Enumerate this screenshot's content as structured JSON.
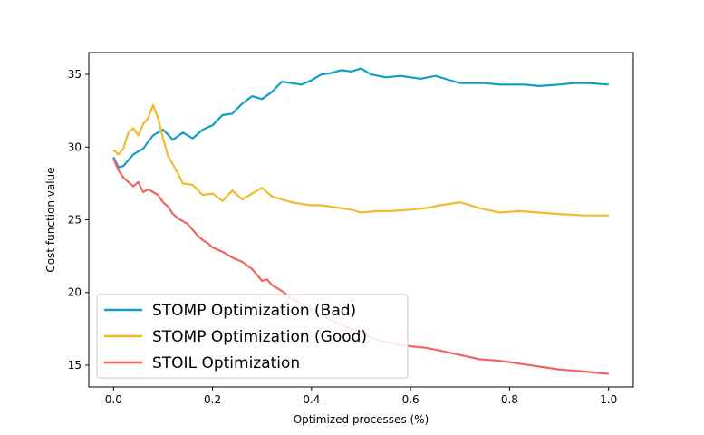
{
  "chart_data": {
    "type": "line",
    "title": "",
    "xlabel": "Optimized processes (%)",
    "ylabel": "Cost function value",
    "xlim": [
      -0.05,
      1.05
    ],
    "ylim": [
      13.5,
      36.5
    ],
    "xticks": [
      0.0,
      0.2,
      0.4,
      0.6,
      0.8,
      1.0
    ],
    "xtick_labels": [
      "0.0",
      "0.2",
      "0.4",
      "0.6",
      "0.8",
      "1.0"
    ],
    "yticks": [
      15,
      20,
      25,
      30,
      35
    ],
    "ytick_labels": [
      "15",
      "20",
      "25",
      "30",
      "35"
    ],
    "grid": false,
    "legend_position": "lower-left",
    "series": [
      {
        "name": "STOMP Optimization (Bad)",
        "color": "#0f9fc6",
        "x": [
          0.0,
          0.01,
          0.02,
          0.04,
          0.06,
          0.08,
          0.1,
          0.12,
          0.14,
          0.16,
          0.18,
          0.2,
          0.22,
          0.24,
          0.26,
          0.28,
          0.3,
          0.32,
          0.34,
          0.36,
          0.38,
          0.4,
          0.42,
          0.44,
          0.46,
          0.48,
          0.5,
          0.52,
          0.55,
          0.58,
          0.6,
          0.62,
          0.65,
          0.68,
          0.7,
          0.72,
          0.75,
          0.78,
          0.8,
          0.83,
          0.86,
          0.9,
          0.93,
          0.96,
          1.0
        ],
        "y": [
          29.3,
          28.6,
          28.7,
          29.5,
          29.9,
          30.8,
          31.2,
          30.5,
          31.0,
          30.6,
          31.2,
          31.5,
          32.2,
          32.3,
          33.0,
          33.5,
          33.3,
          33.8,
          34.5,
          34.4,
          34.3,
          34.6,
          35.0,
          35.1,
          35.3,
          35.2,
          35.4,
          35.0,
          34.8,
          34.9,
          34.8,
          34.7,
          34.9,
          34.6,
          34.4,
          34.4,
          34.4,
          34.3,
          34.3,
          34.3,
          34.2,
          34.3,
          34.4,
          34.4,
          34.3
        ]
      },
      {
        "name": "STOMP Optimization (Good)",
        "color": "#f5b82e",
        "x": [
          0.0,
          0.01,
          0.02,
          0.03,
          0.04,
          0.05,
          0.06,
          0.07,
          0.08,
          0.09,
          0.1,
          0.11,
          0.12,
          0.13,
          0.14,
          0.16,
          0.18,
          0.2,
          0.22,
          0.24,
          0.26,
          0.28,
          0.3,
          0.32,
          0.34,
          0.36,
          0.38,
          0.4,
          0.42,
          0.44,
          0.46,
          0.48,
          0.5,
          0.53,
          0.56,
          0.6,
          0.63,
          0.66,
          0.7,
          0.74,
          0.78,
          0.82,
          0.86,
          0.9,
          0.95,
          1.0
        ],
        "y": [
          29.8,
          29.5,
          29.9,
          31.0,
          31.3,
          30.8,
          31.6,
          32.0,
          32.9,
          32.0,
          30.6,
          29.4,
          28.8,
          28.2,
          27.5,
          27.4,
          26.7,
          26.8,
          26.3,
          27.0,
          26.4,
          26.8,
          27.2,
          26.6,
          26.4,
          26.2,
          26.1,
          26.0,
          26.0,
          25.9,
          25.8,
          25.7,
          25.5,
          25.6,
          25.6,
          25.7,
          25.8,
          26.0,
          26.2,
          25.8,
          25.5,
          25.6,
          25.5,
          25.4,
          25.3,
          25.3
        ]
      },
      {
        "name": "STOIL Optimization",
        "color": "#f06464",
        "x": [
          0.0,
          0.01,
          0.02,
          0.03,
          0.04,
          0.05,
          0.06,
          0.07,
          0.08,
          0.09,
          0.1,
          0.11,
          0.12,
          0.13,
          0.14,
          0.15,
          0.16,
          0.17,
          0.18,
          0.19,
          0.2,
          0.22,
          0.24,
          0.26,
          0.28,
          0.3,
          0.31,
          0.32,
          0.34,
          0.36,
          0.38,
          0.4,
          0.42,
          0.44,
          0.46,
          0.48,
          0.5,
          0.52,
          0.55,
          0.58,
          0.6,
          0.63,
          0.66,
          0.7,
          0.74,
          0.78,
          0.82,
          0.86,
          0.9,
          0.94,
          0.97,
          1.0
        ],
        "y": [
          29.2,
          28.4,
          27.9,
          27.6,
          27.3,
          27.6,
          26.9,
          27.1,
          26.9,
          26.7,
          26.2,
          25.9,
          25.4,
          25.1,
          24.9,
          24.7,
          24.3,
          23.9,
          23.6,
          23.4,
          23.1,
          22.8,
          22.4,
          22.1,
          21.6,
          20.8,
          20.9,
          20.5,
          20.1,
          19.6,
          19.2,
          18.8,
          18.4,
          18.1,
          17.8,
          17.5,
          17.3,
          16.9,
          16.6,
          16.4,
          16.3,
          16.2,
          16.0,
          15.7,
          15.4,
          15.3,
          15.1,
          14.9,
          14.7,
          14.6,
          14.5,
          14.4
        ]
      }
    ]
  }
}
